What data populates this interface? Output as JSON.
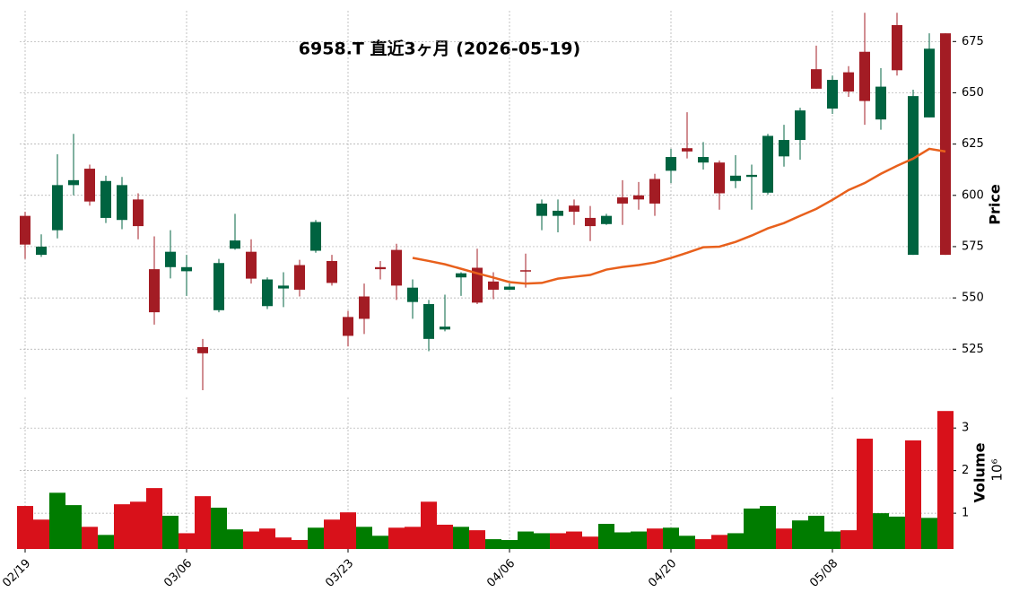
{
  "chart_data": {
    "type": "candlestick",
    "title": "6958.T 直近3ヶ月 (2026-05-19)",
    "ylabel": "Price",
    "categories": [
      "02/19",
      null,
      null,
      null,
      null,
      null,
      null,
      null,
      null,
      null,
      "03/06",
      null,
      null,
      null,
      null,
      null,
      null,
      null,
      null,
      null,
      "03/23",
      null,
      null,
      null,
      null,
      null,
      null,
      null,
      null,
      null,
      "04/06",
      null,
      null,
      null,
      null,
      null,
      null,
      null,
      null,
      null,
      "04/20",
      null,
      null,
      null,
      null,
      null,
      null,
      null,
      null,
      null,
      "05/08",
      null,
      null,
      null,
      null,
      null,
      null,
      null
    ],
    "open": [
      590,
      571,
      583,
      605,
      613,
      589,
      588,
      598,
      564,
      565,
      563,
      526,
      544,
      574,
      572.5,
      546,
      554.6,
      566,
      573,
      568,
      540.7,
      550.7,
      565,
      573.4,
      548,
      530,
      534.6,
      560,
      564.7,
      558,
      554,
      563.5,
      590,
      590,
      595,
      589,
      586,
      599,
      600,
      608,
      612,
      623,
      616,
      616,
      607,
      609,
      601.3,
      619,
      627,
      661.5,
      642.3,
      660,
      670,
      637,
      683,
      571,
      638,
      679
    ],
    "high": [
      592,
      581,
      620,
      630,
      615,
      609.6,
      609,
      601,
      580,
      583,
      571,
      530,
      569,
      591,
      578.6,
      560,
      562.5,
      568.6,
      588,
      571,
      543.7,
      557,
      568,
      576.4,
      559,
      549,
      551.6,
      562.5,
      574,
      562.5,
      557,
      571.6,
      598,
      598,
      598,
      594.8,
      591,
      607.4,
      606.5,
      610.5,
      622.7,
      640.5,
      626,
      617,
      619.6,
      615,
      630,
      634.4,
      642.7,
      673,
      658.4,
      663,
      689,
      662,
      689,
      651.5,
      679,
      679
    ],
    "low": [
      569,
      570,
      579,
      600,
      595,
      586.5,
      583.5,
      578.6,
      537,
      559.5,
      551,
      505,
      543,
      573.5,
      557,
      544.6,
      545.5,
      550.7,
      572,
      556,
      526.3,
      532.4,
      559,
      549,
      539.8,
      524,
      533.7,
      551,
      547,
      549.4,
      553.8,
      555,
      583,
      582,
      585.6,
      577.7,
      585.6,
      585.6,
      593,
      590,
      606,
      618,
      612.6,
      593,
      603.5,
      593,
      600.4,
      614,
      617.4,
      652,
      639.7,
      648,
      634.4,
      632,
      658.4,
      571,
      638,
      571
    ],
    "close": [
      576,
      575,
      605,
      607.4,
      597,
      607,
      605,
      585,
      543,
      572.5,
      565,
      523,
      567,
      578,
      559.4,
      559,
      556,
      554,
      587,
      557.3,
      531.5,
      539.8,
      564,
      556,
      555,
      547,
      536,
      562,
      547.7,
      554,
      555.5,
      563,
      596,
      592.5,
      592,
      585,
      590,
      596,
      598,
      596,
      618.7,
      621.4,
      618.7,
      601,
      609.6,
      610,
      629,
      627,
      641.4,
      652,
      656.3,
      650.6,
      646,
      653,
      661,
      648.4,
      671.5,
      571
    ],
    "up_color": "#006340",
    "down_color": "#a31c24",
    "ma_values": [
      null,
      null,
      null,
      null,
      null,
      null,
      null,
      null,
      null,
      null,
      null,
      null,
      null,
      null,
      null,
      null,
      null,
      null,
      null,
      null,
      null,
      null,
      null,
      null,
      569.5,
      568,
      566.4,
      564.2,
      562,
      559.9,
      557.7,
      557,
      557.3,
      559.4,
      560.3,
      561.2,
      563.8,
      565.1,
      566,
      567.3,
      569.5,
      572,
      574.7,
      575,
      577.3,
      580.4,
      583.9,
      586.5,
      590,
      593.4,
      597.8,
      602.6,
      606,
      610.5,
      614.4,
      617.9,
      622.7,
      621.4
    ],
    "ma_color": "#e8601c",
    "ylim": [
      505,
      690
    ],
    "yticks": [
      525,
      550,
      575,
      600,
      625,
      650,
      675
    ],
    "grid": true,
    "volume": {
      "label": "Volume",
      "offset_label": "10⁶",
      "values": [
        1.17,
        0.85,
        1.48,
        1.19,
        0.68,
        0.49,
        1.21,
        1.27,
        1.59,
        0.94,
        0.53,
        1.4,
        1.13,
        0.62,
        0.57,
        0.64,
        0.43,
        0.37,
        0.66,
        0.85,
        1.02,
        0.68,
        0.47,
        0.66,
        0.68,
        1.27,
        0.73,
        0.68,
        0.6,
        0.39,
        0.37,
        0.57,
        0.53,
        0.53,
        0.57,
        0.45,
        0.75,
        0.55,
        0.57,
        0.64,
        0.66,
        0.47,
        0.39,
        0.49,
        0.53,
        1.11,
        1.17,
        0.64,
        0.83,
        0.94,
        0.57,
        0.6,
        2.75,
        1.0,
        0.92,
        2.71,
        0.89,
        3.4
      ],
      "up_color": "#007c00",
      "down_color": "#d8111a",
      "ylim": [
        0.16,
        3.72
      ],
      "yticks": [
        1,
        2,
        3
      ]
    }
  }
}
